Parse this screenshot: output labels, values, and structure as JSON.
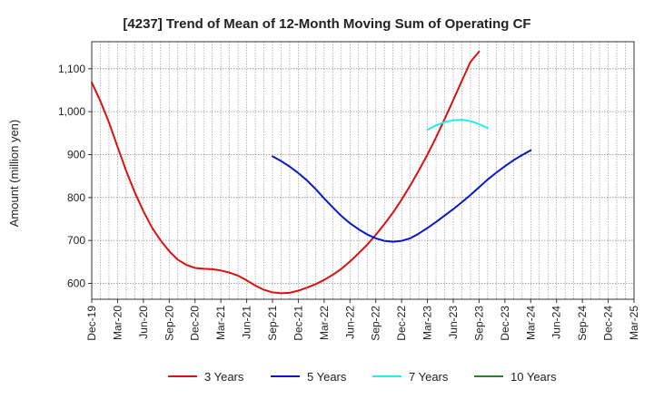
{
  "chart_data": {
    "type": "line",
    "title": "[4237]  Trend of Mean of 12-Month Moving Sum of Operating CF",
    "xlabel": "",
    "ylabel": "Amount (million yen)",
    "ylim": [
      563,
      1163
    ],
    "yticks": [
      600,
      700,
      800,
      900,
      1000,
      1100
    ],
    "ytick_labels": [
      "600",
      "700",
      "800",
      "900",
      "1,000",
      "1,100"
    ],
    "grid": true,
    "legend_position": "bottom",
    "x_tick_labels": [
      "Dec-19",
      "Mar-20",
      "Jun-20",
      "Sep-20",
      "Dec-20",
      "Mar-21",
      "Jun-21",
      "Sep-21",
      "Dec-21",
      "Mar-22",
      "Jun-22",
      "Sep-22",
      "Dec-22",
      "Mar-23",
      "Jun-23",
      "Sep-23",
      "Dec-23",
      "Mar-24",
      "Jun-24",
      "Sep-24",
      "Dec-24",
      "Mar-25"
    ],
    "series": [
      {
        "name": "3 Years",
        "color": "#dd1111",
        "start_index": 0,
        "values": [
          1068,
          1025,
          975,
          918,
          862,
          812,
          768,
          730,
          700,
          675,
          655,
          643,
          636,
          634,
          633,
          630,
          625,
          618,
          607,
          595,
          585,
          579,
          577,
          578,
          583,
          590,
          598,
          608,
          620,
          634,
          651,
          670,
          690,
          713,
          738,
          765,
          795,
          828,
          863,
          900,
          940,
          983,
          1027,
          1072,
          1116,
          1140
        ]
      },
      {
        "name": "5 Years",
        "color": "#0a18cc",
        "start_index": 21,
        "values": [
          896,
          885,
          872,
          857,
          840,
          820,
          798,
          777,
          757,
          740,
          726,
          714,
          705,
          699,
          697,
          699,
          705,
          716,
          729,
          743,
          758,
          773,
          789,
          806,
          824,
          842,
          858,
          873,
          887,
          899,
          910
        ]
      },
      {
        "name": "7 Years",
        "color": "#22eeee",
        "start_index": 39,
        "values": [
          958,
          968,
          976,
          980,
          981,
          978,
          971,
          962
        ]
      },
      {
        "name": "10 Years",
        "color": "#228822",
        "start_index": null,
        "values": []
      }
    ]
  }
}
